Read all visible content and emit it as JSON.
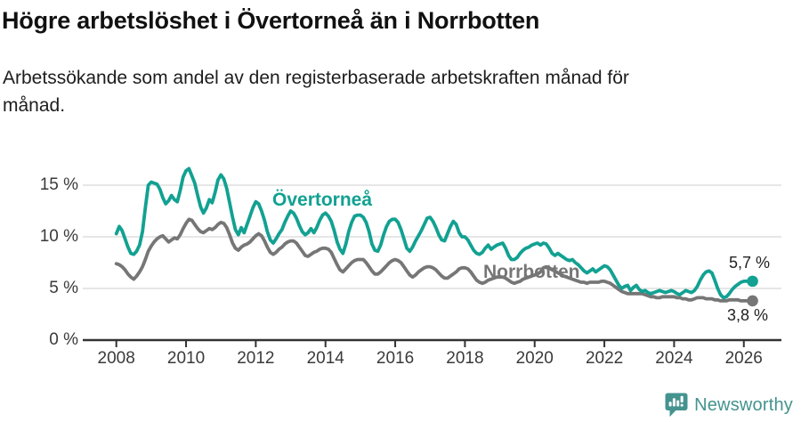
{
  "header": {
    "title": "Högre arbetslöshet i Övertorneå än i Norrbotten",
    "subtitle_lines": [
      "Arbetssökande som andel av den registerbaserade arbetskraften månad för",
      "månad."
    ]
  },
  "chart_data": {
    "type": "line",
    "title": "Högre arbetslöshet i Övertorneå än i Norrbotten",
    "subtitle": "Arbetssökande som andel av den registerbaserade arbetskraften månad för månad.",
    "unit": "%",
    "xlabel": "",
    "ylabel": "",
    "ylim": [
      0,
      17.5
    ],
    "grid": "horizontal-only",
    "legend_position": "inline-labels",
    "x_start_year": 2008,
    "x_step_months": 1,
    "x_ticks": [
      2008,
      2010,
      2012,
      2014,
      2016,
      2018,
      2020,
      2022,
      2024,
      2026
    ],
    "y_ticks": [
      {
        "value": 0,
        "label": "0 %"
      },
      {
        "value": 5,
        "label": "5 %"
      },
      {
        "value": 10,
        "label": "10 %"
      },
      {
        "value": 15,
        "label": "15 %"
      }
    ],
    "gridline_values": [
      5,
      10,
      15
    ],
    "series": [
      {
        "name": "Övertorneå",
        "color": "#12A192",
        "end_label": "5,7 %",
        "end_value": 5.7,
        "values": [
          10.3,
          11.0,
          10.6,
          9.8,
          9.0,
          8.4,
          8.3,
          8.6,
          9.2,
          10.5,
          12.8,
          15.0,
          15.3,
          15.2,
          15.1,
          14.6,
          13.8,
          13.2,
          13.5,
          14.0,
          13.6,
          13.4,
          14.5,
          15.8,
          16.4,
          16.6,
          15.9,
          15.2,
          14.0,
          12.9,
          12.3,
          12.8,
          13.6,
          13.3,
          14.3,
          15.5,
          16.0,
          15.6,
          14.7,
          13.3,
          11.9,
          10.7,
          10.2,
          10.9,
          10.4,
          11.2,
          12.0,
          12.8,
          13.4,
          13.2,
          12.5,
          11.6,
          10.5,
          9.7,
          9.4,
          9.8,
          10.3,
          10.7,
          11.4,
          12.0,
          12.5,
          12.3,
          11.8,
          11.1,
          10.5,
          10.2,
          10.4,
          10.8,
          10.4,
          10.9,
          11.6,
          12.1,
          12.3,
          12.0,
          11.5,
          10.6,
          9.5,
          8.8,
          8.4,
          9.3,
          10.5,
          11.4,
          12.0,
          12.1,
          12.1,
          11.9,
          11.4,
          10.5,
          9.3,
          8.7,
          8.6,
          9.2,
          10.2,
          11.0,
          11.5,
          11.7,
          11.7,
          11.4,
          10.7,
          9.8,
          8.9,
          8.6,
          9.0,
          9.6,
          10.1,
          10.6,
          11.2,
          11.8,
          11.9,
          11.5,
          10.9,
          10.2,
          9.7,
          9.6,
          10.3,
          11.0,
          11.5,
          11.2,
          10.4,
          10.0,
          10.0,
          9.7,
          9.2,
          8.7,
          8.4,
          8.3,
          8.5,
          8.9,
          9.2,
          8.8,
          9.0,
          9.2,
          9.3,
          9.4,
          8.9,
          8.2,
          7.8,
          7.8,
          8.0,
          8.4,
          8.7,
          8.9,
          9.0,
          9.2,
          9.3,
          9.4,
          9.2,
          9.4,
          9.3,
          8.9,
          8.4,
          8.2,
          8.4,
          8.2,
          8.0,
          7.8,
          7.7,
          7.8,
          7.5,
          7.3,
          7.0,
          6.7,
          6.5,
          6.7,
          6.9,
          6.6,
          6.8,
          7.0,
          7.2,
          7.1,
          6.8,
          6.3,
          5.8,
          5.3,
          5.0,
          5.2,
          5.3,
          4.8,
          5.1,
          5.3,
          4.9,
          4.7,
          4.8,
          4.6,
          4.5,
          4.6,
          4.7,
          4.8,
          4.7,
          4.6,
          4.7,
          4.8,
          4.7,
          4.5,
          4.4,
          4.6,
          4.8,
          4.7,
          4.6,
          4.8,
          5.2,
          5.8,
          6.3,
          6.6,
          6.7,
          6.5,
          5.8,
          5.0,
          4.4,
          4.1,
          4.2,
          4.5,
          4.9,
          5.2,
          5.4,
          5.6,
          5.7,
          5.7,
          5.7,
          5.7
        ]
      },
      {
        "name": "Norrbotten",
        "color": "#767676",
        "end_label": "3,8 %",
        "end_value": 3.8,
        "values": [
          7.4,
          7.3,
          7.1,
          6.8,
          6.4,
          6.1,
          5.9,
          6.2,
          6.6,
          7.1,
          7.8,
          8.6,
          9.1,
          9.5,
          9.8,
          10.0,
          10.1,
          9.8,
          9.5,
          9.7,
          9.9,
          9.8,
          10.2,
          10.8,
          11.3,
          11.7,
          11.6,
          11.2,
          10.8,
          10.5,
          10.4,
          10.6,
          10.8,
          10.7,
          10.9,
          11.2,
          11.4,
          11.3,
          10.9,
          10.2,
          9.4,
          8.9,
          8.7,
          9.0,
          9.2,
          9.3,
          9.5,
          9.8,
          10.1,
          10.3,
          10.1,
          9.6,
          9.0,
          8.5,
          8.3,
          8.5,
          8.8,
          9.0,
          9.3,
          9.5,
          9.6,
          9.6,
          9.4,
          9.0,
          8.6,
          8.2,
          8.1,
          8.3,
          8.5,
          8.6,
          8.8,
          8.9,
          8.9,
          8.8,
          8.5,
          7.9,
          7.3,
          6.8,
          6.6,
          6.9,
          7.2,
          7.5,
          7.7,
          7.8,
          7.8,
          7.8,
          7.5,
          7.1,
          6.7,
          6.4,
          6.4,
          6.6,
          6.9,
          7.2,
          7.5,
          7.7,
          7.8,
          7.7,
          7.5,
          7.1,
          6.7,
          6.3,
          6.1,
          6.3,
          6.6,
          6.8,
          7.0,
          7.1,
          7.1,
          7.0,
          6.8,
          6.5,
          6.2,
          6.0,
          6.0,
          6.2,
          6.4,
          6.6,
          6.9,
          7.0,
          7.0,
          6.9,
          6.6,
          6.2,
          5.8,
          5.6,
          5.5,
          5.6,
          5.8,
          5.9,
          6.0,
          6.1,
          6.1,
          6.1,
          6.0,
          5.8,
          5.6,
          5.5,
          5.6,
          5.7,
          5.9,
          6.0,
          6.1,
          6.2,
          6.3,
          6.4,
          6.6,
          7.0,
          7.1,
          7.0,
          6.8,
          6.7,
          6.5,
          6.4,
          6.2,
          6.1,
          6.0,
          5.9,
          5.8,
          5.7,
          5.6,
          5.6,
          5.5,
          5.6,
          5.6,
          5.6,
          5.6,
          5.7,
          5.7,
          5.6,
          5.5,
          5.3,
          5.1,
          4.9,
          4.7,
          4.6,
          4.5,
          4.5,
          4.5,
          4.5,
          4.5,
          4.5,
          4.4,
          4.3,
          4.2,
          4.2,
          4.1,
          4.1,
          4.2,
          4.2,
          4.2,
          4.2,
          4.2,
          4.1,
          4.1,
          4.0,
          4.0,
          3.9,
          3.9,
          4.0,
          4.1,
          4.1,
          4.1,
          4.0,
          4.0,
          4.0,
          3.9,
          3.9,
          3.8,
          3.8,
          3.8,
          3.9,
          3.9,
          3.9,
          3.9,
          3.8,
          3.8,
          3.8,
          3.8,
          3.8
        ]
      }
    ]
  },
  "colors": {
    "axis": "#333333",
    "gridline": "#DEDEDE",
    "tick_label": "#3a3a3a",
    "logo": "#44938F"
  },
  "footer": {
    "brand": "Newsworthy"
  }
}
